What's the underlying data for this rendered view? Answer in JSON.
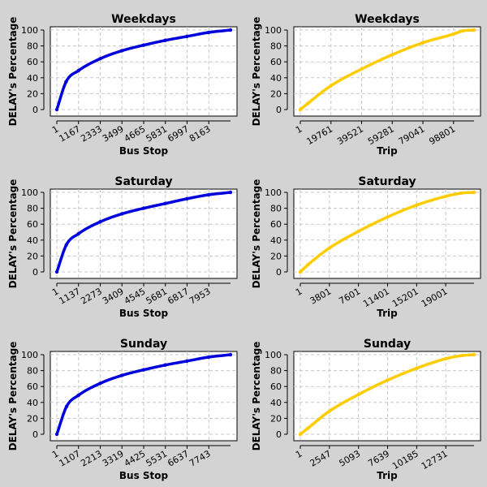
{
  "colors": {
    "background": "#d3d3d3",
    "bus_stop_series": "#0000dd",
    "trip_series": "#ffcc00"
  },
  "chart_data": [
    {
      "type": "line",
      "title": "Weekdays",
      "xlabel": "Bus Stop",
      "ylabel": "DELAY's Percentage",
      "xlim": [
        1,
        9329
      ],
      "ylim": [
        0,
        100
      ],
      "x_ticks": [
        "1",
        "1167",
        "2333",
        "3499",
        "4665",
        "5831",
        "6997",
        "8163"
      ],
      "y_ticks": [
        "0",
        "20",
        "40",
        "60",
        "80",
        "100"
      ],
      "grid": true,
      "color": "#0000dd",
      "x": [
        1,
        500,
        1167,
        2333,
        3499,
        4665,
        5831,
        6997,
        8163,
        9329
      ],
      "y": [
        0,
        35,
        49,
        64,
        74,
        81,
        87,
        92,
        97,
        100
      ]
    },
    {
      "type": "line",
      "title": "Weekdays",
      "xlabel": "Trip",
      "ylabel": "DELAY's Percentage",
      "xlim": [
        1,
        112000
      ],
      "ylim": [
        0,
        100
      ],
      "x_ticks": [
        "1",
        "19761",
        "39521",
        "59281",
        "79041",
        "98801"
      ],
      "y_ticks": [
        "0",
        "20",
        "40",
        "60",
        "80",
        "100"
      ],
      "grid": true,
      "color": "#ffcc00",
      "x": [
        1,
        5000,
        19761,
        39521,
        59281,
        79041,
        98801,
        105000,
        112000
      ],
      "y": [
        0,
        8,
        30,
        51,
        69,
        84,
        95,
        99,
        100
      ]
    },
    {
      "type": "line",
      "title": "Saturday",
      "xlabel": "Bus Stop",
      "ylabel": "DELAY's Percentage",
      "xlim": [
        1,
        9089
      ],
      "ylim": [
        0,
        100
      ],
      "x_ticks": [
        "1",
        "1137",
        "2273",
        "3409",
        "4545",
        "5681",
        "6817",
        "7953"
      ],
      "y_ticks": [
        "0",
        "20",
        "40",
        "60",
        "80",
        "100"
      ],
      "grid": true,
      "color": "#0000dd",
      "x": [
        1,
        500,
        1137,
        2273,
        3409,
        4545,
        5681,
        6817,
        7953,
        9089
      ],
      "y": [
        0,
        34,
        48,
        63,
        73,
        80,
        86,
        92,
        97,
        100
      ]
    },
    {
      "type": "line",
      "title": "Saturday",
      "xlabel": "Trip",
      "ylabel": "DELAY's Percentage",
      "xlim": [
        1,
        22700
      ],
      "ylim": [
        0,
        100
      ],
      "x_ticks": [
        "1",
        "3801",
        "7601",
        "11401",
        "15201",
        "19001"
      ],
      "y_ticks": [
        "0",
        "20",
        "40",
        "60",
        "80",
        "100"
      ],
      "grid": true,
      "color": "#ffcc00",
      "x": [
        1,
        1000,
        3801,
        7601,
        11401,
        15201,
        19001,
        21000,
        22700
      ],
      "y": [
        0,
        9,
        30,
        51,
        69,
        84,
        95,
        99,
        100
      ]
    },
    {
      "type": "line",
      "title": "Sunday",
      "xlabel": "Bus Stop",
      "ylabel": "DELAY's Percentage",
      "xlim": [
        1,
        8849
      ],
      "ylim": [
        0,
        100
      ],
      "x_ticks": [
        "1",
        "1107",
        "2213",
        "3319",
        "4425",
        "5531",
        "6637",
        "7743"
      ],
      "y_ticks": [
        "0",
        "20",
        "40",
        "60",
        "80",
        "100"
      ],
      "grid": true,
      "color": "#0000dd",
      "x": [
        1,
        500,
        1107,
        2213,
        3319,
        4425,
        5531,
        6637,
        7743,
        8849
      ],
      "y": [
        0,
        35,
        49,
        64,
        74,
        81,
        87,
        92,
        97,
        100
      ]
    },
    {
      "type": "line",
      "title": "Sunday",
      "xlabel": "Trip",
      "ylabel": "DELAY's Percentage",
      "xlim": [
        1,
        15200
      ],
      "ylim": [
        0,
        100
      ],
      "x_ticks": [
        "1",
        "2547",
        "5093",
        "7639",
        "10185",
        "12731"
      ],
      "y_ticks": [
        "0",
        "20",
        "40",
        "60",
        "80",
        "100"
      ],
      "grid": true,
      "color": "#ffcc00",
      "x": [
        1,
        700,
        2547,
        5093,
        7639,
        10185,
        12731,
        14200,
        15200
      ],
      "y": [
        0,
        8,
        29,
        50,
        68,
        83,
        95,
        99,
        100
      ]
    }
  ]
}
